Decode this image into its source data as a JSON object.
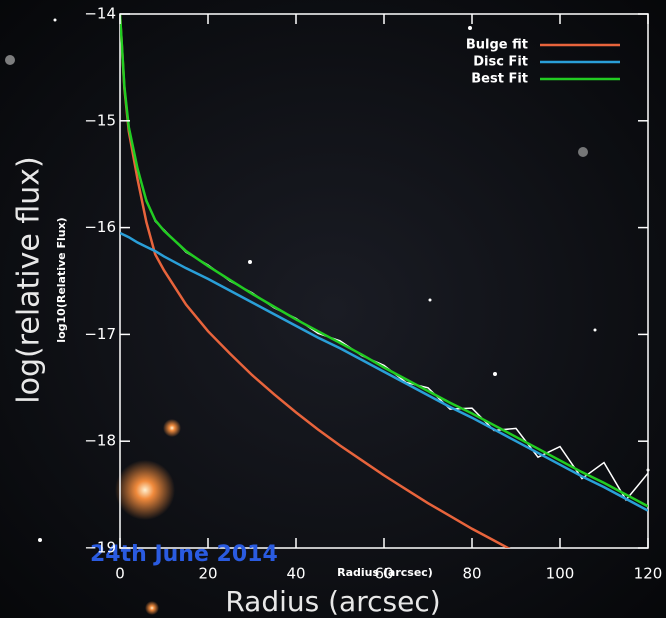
{
  "chart_data": {
    "type": "line",
    "y_label_outer": "log(relative flux)",
    "y_label_inner": "log10(Relative Flux)",
    "x_label_inner": "Radius (arcsec)",
    "x_label_outer": "Radius (arcsec)",
    "annotation": "24th June 2014",
    "x": [
      0,
      1,
      2,
      4,
      6,
      8,
      10,
      15,
      20,
      25,
      30,
      35,
      40,
      45,
      50,
      55,
      60,
      65,
      70,
      75,
      80,
      85,
      90,
      95,
      100,
      105,
      110,
      115,
      120
    ],
    "series": [
      {
        "color": "#ffffff",
        "values": [
          -14.0,
          -14.69,
          -15.05,
          -15.46,
          -15.74,
          -15.94,
          -16.02,
          -16.23,
          -16.35,
          -16.5,
          -16.61,
          -16.75,
          -16.85,
          -16.99,
          -17.06,
          -17.2,
          -17.29,
          -17.45,
          -17.5,
          -17.7,
          -17.69,
          -17.9,
          -17.88,
          -18.15,
          -18.05,
          -18.35,
          -18.2,
          -18.55,
          -18.3
        ]
      },
      {
        "name": "Bulge fit",
        "color": "#e8643c",
        "values": [
          -14.0,
          -14.7,
          -15.1,
          -15.55,
          -15.95,
          -16.25,
          -16.4,
          -16.72,
          -16.97,
          -17.18,
          -17.38,
          -17.56,
          -17.73,
          -17.89,
          -18.04,
          -18.18,
          -18.32,
          -18.45,
          -18.58,
          -18.7,
          -18.82,
          -18.93,
          -19.04,
          null,
          null,
          null,
          null,
          null,
          null
        ]
      },
      {
        "name": "Disc Fit",
        "color": "#2a9fd8",
        "values": [
          -16.05,
          -16.07,
          -16.09,
          -16.14,
          -16.18,
          -16.22,
          -16.27,
          -16.38,
          -16.48,
          -16.59,
          -16.7,
          -16.81,
          -16.92,
          -17.03,
          -17.13,
          -17.24,
          -17.35,
          -17.46,
          -17.57,
          -17.68,
          -17.78,
          -17.89,
          -18.0,
          -18.11,
          -18.22,
          -18.33,
          -18.43,
          -18.54,
          -18.65
        ]
      },
      {
        "name": "Best Fit",
        "color": "#22cc22",
        "values": [
          -14.0,
          -14.68,
          -15.06,
          -15.45,
          -15.75,
          -15.93,
          -16.03,
          -16.22,
          -16.36,
          -16.49,
          -16.62,
          -16.74,
          -16.86,
          -16.97,
          -17.08,
          -17.19,
          -17.31,
          -17.42,
          -17.53,
          -17.64,
          -17.74,
          -17.85,
          -17.96,
          -18.07,
          -18.18,
          -18.29,
          -18.39,
          -18.5,
          -18.61
        ]
      }
    ],
    "xlim": [
      0,
      120
    ],
    "xticks": [
      0,
      20,
      40,
      60,
      80,
      100,
      120
    ],
    "ylim": [
      -19,
      -14
    ],
    "yticks": [
      {
        "value": -19,
        "label": "−19"
      },
      {
        "value": -18,
        "label": "−18"
      },
      {
        "value": -17,
        "label": "−17"
      },
      {
        "value": -16,
        "label": "−16"
      },
      {
        "value": -15,
        "label": "−15"
      },
      {
        "value": -14,
        "label": "−14"
      }
    ],
    "legend": "top-right"
  }
}
